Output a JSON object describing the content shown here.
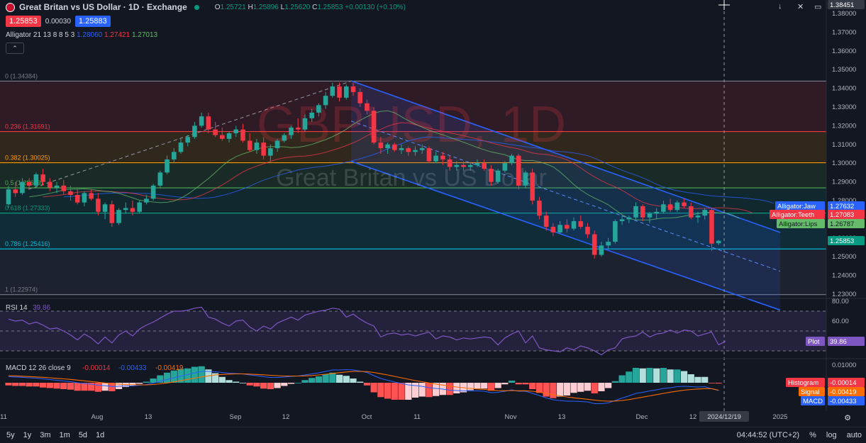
{
  "header": {
    "title": "Great Britan vs US Dollar · 1D · Exchange",
    "o": "1.25721",
    "h": "1.25896",
    "l": "1.25620",
    "c": "1.25853",
    "change": "+0.00130 (+0.10%)"
  },
  "prices": {
    "sell": "1.25853",
    "spread": "0.00030",
    "buy": "1.25883"
  },
  "alligator": {
    "label": "Alligator 21 13 8 8 5 3",
    "jaw": "1.28060",
    "teeth": "1.27421",
    "lips": "1.27013"
  },
  "watermark": {
    "symbol": "GBPUSD, 1D",
    "name": "Great Britan vs US Dollar"
  },
  "rsi": {
    "label": "RSI 14",
    "value": "39.86",
    "plot_label": "Plot",
    "plot_value": "39.86"
  },
  "macd": {
    "label": "MACD 12 26 close 9",
    "v1": "-0.00014",
    "v2": "-0.00433",
    "v3": "-0.00419",
    "hist_label": "Histogram",
    "hist_value": "-0.00014",
    "signal_label": "Signal",
    "signal_value": "-0.00419",
    "macd_label": "MACD",
    "macd_value": "-0.00433"
  },
  "crosshair": {
    "price": "1.38451",
    "date": "2024/12/19"
  },
  "labels": {
    "jaw": "Alligator:Jaw",
    "jaw_value": "1.27632",
    "teeth": "Alligator:Teeth",
    "teeth_value": "1.27083",
    "lips": "Alligator:Lips",
    "lips_value": "1.26787",
    "last": "1.25853"
  },
  "fib": [
    {
      "label": "0 (1.34384)",
      "level": 1.34384,
      "color": "#787b86"
    },
    {
      "label": "0.236 (1.31691)",
      "level": 1.31691,
      "color": "#f23645"
    },
    {
      "label": "0.382 (1.30025)",
      "level": 1.30025,
      "color": "#ff9800"
    },
    {
      "label": "0.5 (1.28679)",
      "level": 1.28679,
      "color": "#4caf50"
    },
    {
      "label": "0.618 (1.27333)",
      "level": 1.27333,
      "color": "#089981"
    },
    {
      "label": "0.786 (1.25416)",
      "level": 1.25416,
      "color": "#00bcd4"
    },
    {
      "label": "1 (1.22974)",
      "level": 1.22974,
      "color": "#787b86"
    }
  ],
  "price_axis": [
    "1.38000",
    "1.37000",
    "1.36000",
    "1.35000",
    "1.34000",
    "1.33000",
    "1.32000",
    "1.31000",
    "1.30000",
    "1.29000",
    "1.28000",
    "1.27000",
    "1.26000",
    "1.25000",
    "1.24000",
    "1.23000"
  ],
  "rsi_axis": [
    "80.00",
    "60.00"
  ],
  "macd_axis": [
    "0.01000"
  ],
  "time_axis": [
    "11",
    "Aug",
    "13",
    "Sep",
    "12",
    "Oct",
    "11",
    "Nov",
    "13",
    "Dec",
    "12",
    "2025"
  ],
  "bottom": {
    "ranges": [
      "5y",
      "1y",
      "3m",
      "1m",
      "5d",
      "1d"
    ],
    "clock": "04:44:52 (UTC+2)",
    "pct": "%",
    "log": "log",
    "auto": "auto"
  },
  "colors": {
    "up": "#26a69a",
    "down": "#f23645",
    "jaw": "#2962ff",
    "teeth": "#f23645",
    "lips": "#66bb6a"
  },
  "chart_data": {
    "type": "candlestick",
    "title": "GBPUSD, 1D",
    "ylim": [
      1.225,
      1.385
    ],
    "series": [
      {
        "name": "GBPUSD",
        "values": [
          [
            1.278,
            1.288,
            1.276,
            1.286
          ],
          [
            1.286,
            1.29,
            1.282,
            1.284
          ],
          [
            1.284,
            1.292,
            1.283,
            1.29
          ],
          [
            1.29,
            1.292,
            1.286,
            1.288
          ],
          [
            1.288,
            1.295,
            1.287,
            1.294
          ],
          [
            1.294,
            1.297,
            1.288,
            1.29
          ],
          [
            1.29,
            1.292,
            1.285,
            1.287
          ],
          [
            1.287,
            1.29,
            1.284,
            1.288
          ],
          [
            1.288,
            1.291,
            1.283,
            1.285
          ],
          [
            1.285,
            1.288,
            1.28,
            1.283
          ],
          [
            1.283,
            1.286,
            1.278,
            1.279
          ],
          [
            1.279,
            1.285,
            1.277,
            1.284
          ],
          [
            1.284,
            1.286,
            1.28,
            1.281
          ],
          [
            1.281,
            1.284,
            1.272,
            1.274
          ],
          [
            1.274,
            1.279,
            1.27,
            1.278
          ],
          [
            1.278,
            1.28,
            1.266,
            1.268
          ],
          [
            1.268,
            1.276,
            1.267,
            1.275
          ],
          [
            1.275,
            1.279,
            1.273,
            1.276
          ],
          [
            1.276,
            1.28,
            1.272,
            1.274
          ],
          [
            1.274,
            1.28,
            1.273,
            1.279
          ],
          [
            1.279,
            1.283,
            1.278,
            1.281
          ],
          [
            1.281,
            1.289,
            1.28,
            1.288
          ],
          [
            1.288,
            1.296,
            1.287,
            1.295
          ],
          [
            1.295,
            1.304,
            1.294,
            1.302
          ],
          [
            1.302,
            1.308,
            1.3,
            1.306
          ],
          [
            1.306,
            1.313,
            1.305,
            1.311
          ],
          [
            1.311,
            1.315,
            1.309,
            1.314
          ],
          [
            1.314,
            1.322,
            1.313,
            1.32
          ],
          [
            1.32,
            1.327,
            1.319,
            1.325
          ],
          [
            1.325,
            1.327,
            1.316,
            1.318
          ],
          [
            1.318,
            1.322,
            1.314,
            1.315
          ],
          [
            1.315,
            1.319,
            1.312,
            1.313
          ],
          [
            1.313,
            1.317,
            1.311,
            1.316
          ],
          [
            1.316,
            1.32,
            1.314,
            1.318
          ],
          [
            1.318,
            1.321,
            1.311,
            1.312
          ],
          [
            1.312,
            1.316,
            1.306,
            1.307
          ],
          [
            1.307,
            1.313,
            1.305,
            1.311
          ],
          [
            1.311,
            1.314,
            1.302,
            1.304
          ],
          [
            1.304,
            1.31,
            1.301,
            1.308
          ],
          [
            1.308,
            1.313,
            1.306,
            1.312
          ],
          [
            1.312,
            1.316,
            1.311,
            1.315
          ],
          [
            1.315,
            1.32,
            1.313,
            1.319
          ],
          [
            1.319,
            1.324,
            1.316,
            1.318
          ],
          [
            1.318,
            1.326,
            1.317,
            1.324
          ],
          [
            1.324,
            1.329,
            1.322,
            1.327
          ],
          [
            1.327,
            1.332,
            1.325,
            1.331
          ],
          [
            1.331,
            1.338,
            1.329,
            1.336
          ],
          [
            1.336,
            1.343,
            1.335,
            1.341
          ],
          [
            1.341,
            1.343,
            1.333,
            1.335
          ],
          [
            1.335,
            1.342,
            1.334,
            1.341
          ],
          [
            1.341,
            1.343,
            1.336,
            1.338
          ],
          [
            1.338,
            1.34,
            1.33,
            1.332
          ],
          [
            1.332,
            1.334,
            1.326,
            1.328
          ],
          [
            1.328,
            1.33,
            1.31,
            1.311
          ],
          [
            1.311,
            1.314,
            1.305,
            1.308
          ],
          [
            1.308,
            1.311,
            1.305,
            1.31
          ],
          [
            1.31,
            1.311,
            1.306,
            1.307
          ],
          [
            1.307,
            1.31,
            1.305,
            1.308
          ],
          [
            1.308,
            1.309,
            1.304,
            1.306
          ],
          [
            1.306,
            1.309,
            1.304,
            1.307
          ],
          [
            1.307,
            1.31,
            1.305,
            1.308
          ],
          [
            1.308,
            1.309,
            1.3,
            1.301
          ],
          [
            1.301,
            1.306,
            1.3,
            1.304
          ],
          [
            1.304,
            1.306,
            1.299,
            1.302
          ],
          [
            1.302,
            1.304,
            1.296,
            1.298
          ],
          [
            1.298,
            1.301,
            1.296,
            1.299
          ],
          [
            1.299,
            1.301,
            1.296,
            1.298
          ],
          [
            1.298,
            1.3,
            1.296,
            1.299
          ],
          [
            1.299,
            1.302,
            1.298,
            1.3
          ],
          [
            1.3,
            1.302,
            1.296,
            1.297
          ],
          [
            1.297,
            1.299,
            1.288,
            1.29
          ],
          [
            1.29,
            1.297,
            1.289,
            1.296
          ],
          [
            1.296,
            1.301,
            1.295,
            1.3
          ],
          [
            1.3,
            1.305,
            1.299,
            1.304
          ],
          [
            1.304,
            1.305,
            1.286,
            1.288
          ],
          [
            1.288,
            1.296,
            1.287,
            1.295
          ],
          [
            1.295,
            1.297,
            1.278,
            1.28
          ],
          [
            1.28,
            1.282,
            1.27,
            1.272
          ],
          [
            1.272,
            1.274,
            1.264,
            1.266
          ],
          [
            1.266,
            1.268,
            1.261,
            1.263
          ],
          [
            1.263,
            1.269,
            1.262,
            1.267
          ],
          [
            1.267,
            1.27,
            1.263,
            1.265
          ],
          [
            1.265,
            1.271,
            1.264,
            1.269
          ],
          [
            1.269,
            1.272,
            1.265,
            1.266
          ],
          [
            1.266,
            1.268,
            1.26,
            1.262
          ],
          [
            1.262,
            1.264,
            1.249,
            1.251
          ],
          [
            1.251,
            1.258,
            1.25,
            1.256
          ],
          [
            1.256,
            1.26,
            1.254,
            1.258
          ],
          [
            1.258,
            1.27,
            1.257,
            1.269
          ],
          [
            1.269,
            1.272,
            1.267,
            1.27
          ],
          [
            1.27,
            1.272,
            1.268,
            1.271
          ],
          [
            1.271,
            1.279,
            1.27,
            1.277
          ],
          [
            1.277,
            1.278,
            1.269,
            1.271
          ],
          [
            1.271,
            1.274,
            1.268,
            1.273
          ],
          [
            1.273,
            1.276,
            1.27,
            1.274
          ],
          [
            1.274,
            1.28,
            1.273,
            1.278
          ],
          [
            1.278,
            1.281,
            1.274,
            1.275
          ],
          [
            1.275,
            1.28,
            1.274,
            1.279
          ],
          [
            1.279,
            1.281,
            1.276,
            1.277
          ],
          [
            1.277,
            1.279,
            1.27,
            1.271
          ],
          [
            1.271,
            1.274,
            1.268,
            1.272
          ],
          [
            1.272,
            1.276,
            1.27,
            1.275
          ],
          [
            1.275,
            1.276,
            1.253,
            1.257
          ],
          [
            1.2572,
            1.259,
            1.2562,
            1.2585
          ]
        ]
      }
    ],
    "rsi": [
      62,
      60,
      61,
      57,
      59,
      56,
      52,
      53,
      50,
      46,
      41,
      47,
      43,
      37,
      44,
      38,
      46,
      50,
      45,
      52,
      56,
      59,
      63,
      67,
      70,
      70,
      71,
      73,
      74,
      64,
      62,
      58,
      55,
      60,
      61,
      54,
      50,
      55,
      52,
      58,
      61,
      64,
      61,
      66,
      68,
      70,
      71,
      73,
      72,
      64,
      67,
      62,
      58,
      55,
      44,
      47,
      48,
      46,
      47,
      45,
      47,
      49,
      42,
      45,
      44,
      41,
      43,
      42,
      43,
      44,
      43,
      36,
      43,
      47,
      50,
      38,
      45,
      33,
      31,
      30,
      29,
      33,
      31,
      35,
      33,
      30,
      26,
      31,
      33,
      42,
      44,
      45,
      49,
      44,
      47,
      48,
      51,
      48,
      51,
      50,
      45,
      47,
      49,
      36,
      39.86
    ],
    "macd": [
      0.0035,
      0.0033,
      0.0031,
      0.0028,
      0.0026,
      0.0022,
      0.0018,
      0.0014,
      0.001,
      0.0006,
      0.0,
      -0.0004,
      -0.0008,
      -0.0014,
      -0.0016,
      -0.0021,
      -0.002,
      -0.0018,
      -0.0018,
      -0.0014,
      -0.001,
      -0.0002,
      0.0008,
      0.0018,
      0.0028,
      0.0038,
      0.0046,
      0.0056,
      0.0064,
      0.0064,
      0.0062,
      0.0058,
      0.0054,
      0.0052,
      0.005,
      0.0044,
      0.004,
      0.0034,
      0.003,
      0.003,
      0.0032,
      0.0036,
      0.0038,
      0.0044,
      0.005,
      0.0056,
      0.0064,
      0.0072,
      0.0072,
      0.0074,
      0.0072,
      0.0066,
      0.0058,
      0.004,
      0.0024,
      0.0014,
      0.0004,
      -0.0004,
      -0.0012,
      -0.0016,
      -0.002,
      -0.0028,
      -0.0032,
      -0.0036,
      -0.0042,
      -0.0044,
      -0.0046,
      -0.0046,
      -0.0046,
      -0.0048,
      -0.0056,
      -0.0054,
      -0.0048,
      -0.004,
      -0.0048,
      -0.0048,
      -0.006,
      -0.0072,
      -0.0086,
      -0.0096,
      -0.01,
      -0.0104,
      -0.0104,
      -0.0106,
      -0.0108,
      -0.0118,
      -0.0118,
      -0.0114,
      -0.01,
      -0.0086,
      -0.0074,
      -0.006,
      -0.0054,
      -0.0046,
      -0.004,
      -0.0032,
      -0.0028,
      -0.0022,
      -0.002,
      -0.0022,
      -0.0024,
      -0.0022,
      -0.0034,
      -0.00433
    ],
    "signal": [
      0.004,
      0.0039,
      0.0037,
      0.0035,
      0.0033,
      0.0031,
      0.0028,
      0.0025,
      0.0022,
      0.0019,
      0.0015,
      0.0011,
      0.0007,
      0.0003,
      -0.0001,
      -0.0005,
      -0.0008,
      -0.001,
      -0.0012,
      -0.0012,
      -0.0012,
      -0.001,
      -0.0006,
      -0.0001,
      0.0005,
      0.0012,
      0.0019,
      0.0026,
      0.0033,
      0.0039,
      0.0044,
      0.0047,
      0.0049,
      0.005,
      0.005,
      0.0049,
      0.0047,
      0.0045,
      0.0042,
      0.004,
      0.0038,
      0.0038,
      0.0038,
      0.0039,
      0.0041,
      0.0044,
      0.0048,
      0.0053,
      0.0057,
      0.0061,
      0.0064,
      0.0064,
      0.0063,
      0.0058,
      0.0051,
      0.0044,
      0.0036,
      0.0028,
      0.002,
      0.0012,
      0.0006,
      -0.0001,
      -0.0007,
      -0.0013,
      -0.0019,
      -0.0024,
      -0.0028,
      -0.0032,
      -0.0035,
      -0.0037,
      -0.0041,
      -0.0044,
      -0.0045,
      -0.0044,
      -0.0045,
      -0.0045,
      -0.0048,
      -0.0053,
      -0.006,
      -0.0067,
      -0.0074,
      -0.008,
      -0.0085,
      -0.0089,
      -0.0093,
      -0.0098,
      -0.0102,
      -0.0104,
      -0.0103,
      -0.01,
      -0.0095,
      -0.0088,
      -0.0081,
      -0.0074,
      -0.0067,
      -0.006,
      -0.0053,
      -0.0047,
      -0.0042,
      -0.0038,
      -0.0035,
      -0.0033,
      -0.0033,
      -0.00419
    ]
  }
}
